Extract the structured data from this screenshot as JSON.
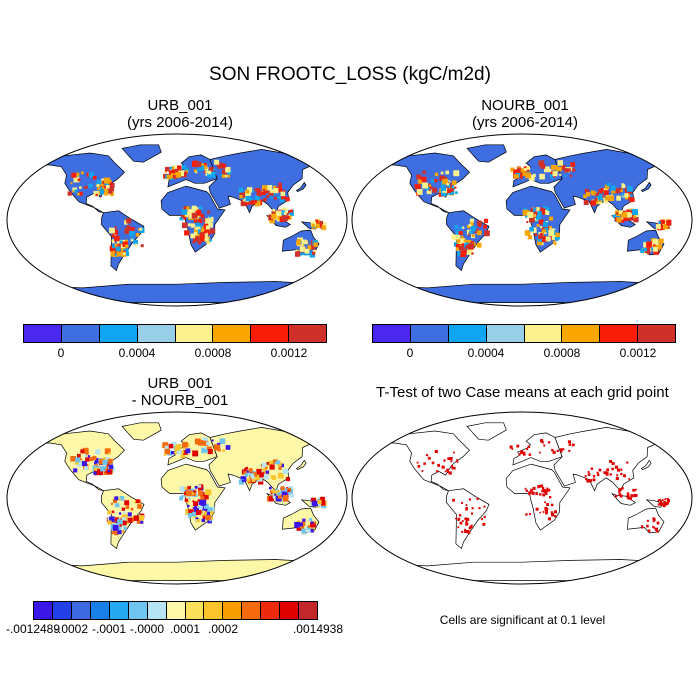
{
  "figure": {
    "title": "SON FROOTC_LOSS (kgC/m2d)"
  },
  "panels": [
    {
      "title": "URB_001\n(yrs 2006-2014)",
      "kind": "field"
    },
    {
      "title": "NOURB_001\n(yrs 2006-2014)",
      "kind": "field"
    },
    {
      "title": "URB_001\n- NOURB_001",
      "kind": "diff"
    },
    {
      "title": "T-Test of two Case means at each grid point",
      "kind": "ttest"
    }
  ],
  "colorbars": {
    "field": {
      "colors": [
        "#4a28f0",
        "#3f6ee0",
        "#0fa5f0",
        "#97cfe8",
        "#fbf28f",
        "#f8a500",
        "#f81d06",
        "#d0302a"
      ],
      "labels": [
        "0",
        "0.0004",
        "0.0008",
        "0.0012"
      ]
    },
    "diff": {
      "colors": [
        "#3a17e6",
        "#2340e8",
        "#3e68e0",
        "#1880e8",
        "#27a9f2",
        "#6fc5ef",
        "#b7e4f2",
        "#fdf7a8",
        "#fbe15b",
        "#fbc42a",
        "#f89d00",
        "#f66a0e",
        "#ee2a0d",
        "#e00000",
        "#c3272b"
      ],
      "labels": [
        "-.0012489",
        "-.0002",
        "-.0001",
        "-.0000",
        ".0001",
        ".0002",
        ".0014938"
      ]
    }
  },
  "ttest_note": "Cells are significant at 0.1 level"
}
